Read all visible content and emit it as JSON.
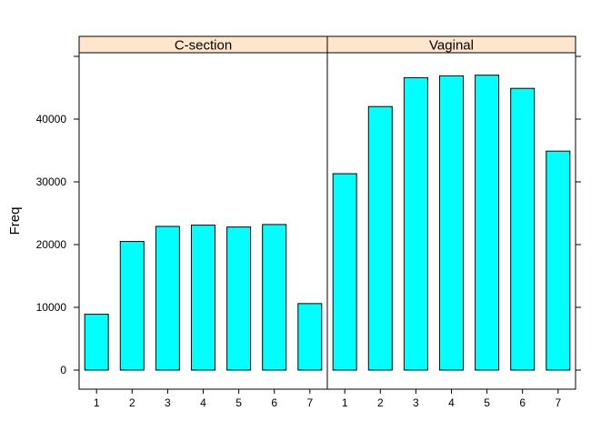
{
  "chart_data": {
    "type": "bar",
    "ylabel": "Freq",
    "xlabel": "",
    "title": "",
    "ylim": [
      -3000,
      50000
    ],
    "yticks": [
      0,
      10000,
      20000,
      30000,
      40000
    ],
    "categories": [
      "1",
      "2",
      "3",
      "4",
      "5",
      "6",
      "7"
    ],
    "panels": [
      {
        "label": "C-section",
        "values": [
          8900,
          20500,
          22900,
          23100,
          22800,
          23200,
          10600
        ]
      },
      {
        "label": "Vaginal",
        "values": [
          31300,
          42000,
          46600,
          46900,
          47000,
          44900,
          34900
        ]
      }
    ],
    "grid": false,
    "colors": {
      "bar_fill": "#00FFFF",
      "bar_stroke": "#000000",
      "strip_fill": "#FFE5CC",
      "frame": "#000000"
    }
  }
}
